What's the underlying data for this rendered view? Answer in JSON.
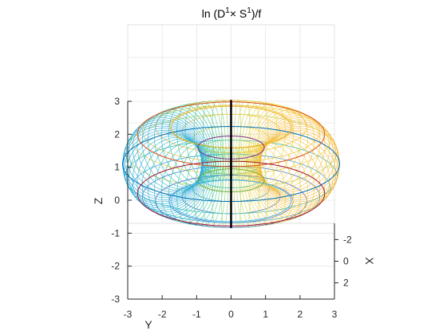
{
  "chart_data": {
    "type": "surface-3d",
    "title": {
      "prefix": "ln (D",
      "sup1": "1",
      "times": "× S",
      "sup2": "1",
      "suffix": ")/f"
    },
    "xlabel": "X",
    "ylabel": "Y",
    "zlabel": "Z",
    "xlim": [
      -3.5,
      3.5
    ],
    "ylim": [
      -3,
      3
    ],
    "zlim": [
      -3,
      3
    ],
    "xticks": [
      "-2",
      "0",
      "2"
    ],
    "yticks": [
      "-3",
      "-2",
      "-1",
      "0",
      "1",
      "2",
      "3"
    ],
    "zticks": [
      "3",
      "2",
      "1",
      "0",
      "-1",
      "-2",
      "-3"
    ],
    "grid": true,
    "surface": {
      "shape": "torus",
      "major_radius": 2,
      "minor_radius": 1.15,
      "center_z": 1.1,
      "colormap": [
        "#3b4cc0",
        "#2aa9df",
        "#33c8a6",
        "#a6d96a",
        "#f2d43d",
        "#f6b93b"
      ],
      "boundary_color": "#000000",
      "ring_colors": [
        "#0072bd",
        "#d95319",
        "#edb120",
        "#7e2f8e",
        "#77ac30",
        "#4dbeee",
        "#a2142f"
      ]
    }
  }
}
